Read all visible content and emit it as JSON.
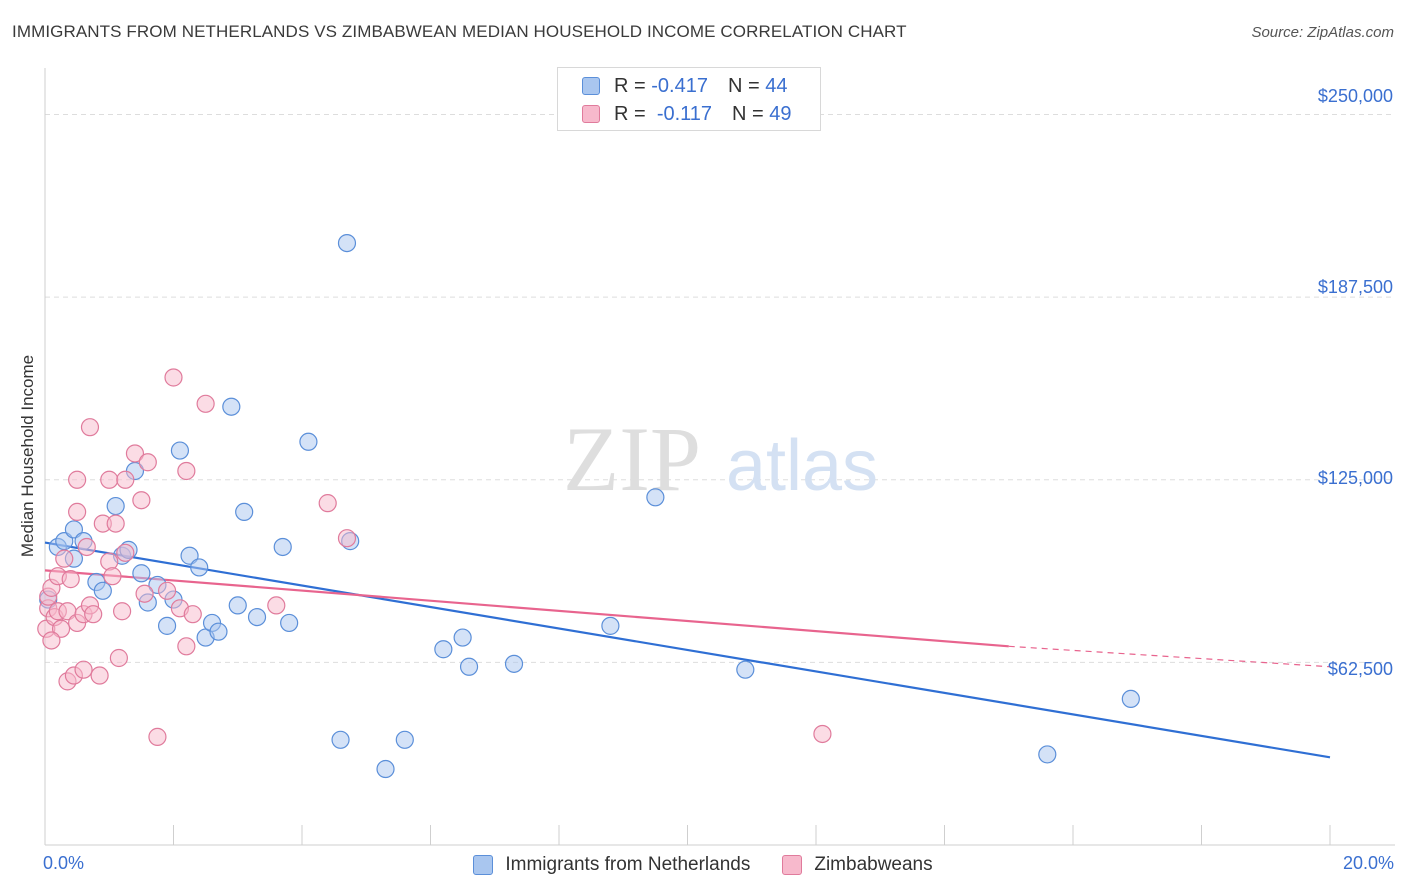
{
  "header": {
    "title": "IMMIGRANTS FROM NETHERLANDS VS ZIMBABWEAN MEDIAN HOUSEHOLD INCOME CORRELATION CHART",
    "source": "Source: ZipAtlas.com"
  },
  "legend": {
    "rows": [
      {
        "r_label": "R =",
        "r_value": "-0.417",
        "n_label": "N =",
        "n_value": "44"
      },
      {
        "r_label": "R =",
        "r_value": "-0.117",
        "n_label": "N =",
        "n_value": "49"
      }
    ]
  },
  "watermark": {
    "zip": "ZIP",
    "atlas": "atlas"
  },
  "colors": {
    "blue_fill": "#a9c6ef",
    "blue_stroke": "#5b8fd9",
    "blue_line": "#2f6fd4",
    "pink_fill": "#f7b9cc",
    "pink_stroke": "#e07b9c",
    "pink_line": "#e8648e",
    "axis_text": "#3a6fd0",
    "grid": "#dddddd"
  },
  "chart_data": {
    "type": "scatter",
    "title": "IMMIGRANTS FROM NETHERLANDS VS ZIMBABWEAN MEDIAN HOUSEHOLD INCOME CORRELATION CHART",
    "xlabel": "",
    "ylabel": "Median Household Income",
    "xlim": [
      0,
      20
    ],
    "ylim": [
      0,
      262500
    ],
    "x_tick_labels": [
      "0.0%",
      "20.0%"
    ],
    "y_ticks": [
      62500,
      125000,
      187500,
      250000
    ],
    "y_tick_labels": [
      "$62,500",
      "$125,000",
      "$187,500",
      "$250,000"
    ],
    "grid": true,
    "legend_position": "top-center",
    "series": [
      {
        "name": "Immigrants from Netherlands",
        "color": "#5b8fd9",
        "points": [
          [
            0.05,
            84000
          ],
          [
            0.2,
            102000
          ],
          [
            0.3,
            104000
          ],
          [
            0.45,
            108000
          ],
          [
            0.45,
            98000
          ],
          [
            0.6,
            104000
          ],
          [
            0.8,
            90000
          ],
          [
            0.9,
            87000
          ],
          [
            1.1,
            116000
          ],
          [
            1.2,
            99000
          ],
          [
            1.3,
            101000
          ],
          [
            1.4,
            128000
          ],
          [
            1.5,
            93000
          ],
          [
            1.6,
            83000
          ],
          [
            1.75,
            89000
          ],
          [
            1.9,
            75000
          ],
          [
            2.0,
            84000
          ],
          [
            2.1,
            135000
          ],
          [
            2.25,
            99000
          ],
          [
            2.4,
            95000
          ],
          [
            2.5,
            71000
          ],
          [
            2.6,
            76000
          ],
          [
            2.7,
            73000
          ],
          [
            2.9,
            150000
          ],
          [
            3.0,
            82000
          ],
          [
            3.1,
            114000
          ],
          [
            3.3,
            78000
          ],
          [
            3.7,
            102000
          ],
          [
            3.8,
            76000
          ],
          [
            4.1,
            138000
          ],
          [
            4.6,
            36000
          ],
          [
            4.7,
            206000
          ],
          [
            4.75,
            104000
          ],
          [
            5.3,
            26000
          ],
          [
            5.6,
            36000
          ],
          [
            6.2,
            67000
          ],
          [
            6.5,
            71000
          ],
          [
            6.6,
            61000
          ],
          [
            7.3,
            62000
          ],
          [
            8.8,
            75000
          ],
          [
            9.5,
            119000
          ],
          [
            10.9,
            60000
          ],
          [
            15.6,
            31000
          ],
          [
            16.9,
            50000
          ]
        ]
      },
      {
        "name": "Zimbabweans",
        "color": "#e07b9c",
        "points": [
          [
            0.02,
            74000
          ],
          [
            0.05,
            81000
          ],
          [
            0.05,
            85000
          ],
          [
            0.1,
            88000
          ],
          [
            0.15,
            78000
          ],
          [
            0.2,
            92000
          ],
          [
            0.2,
            80000
          ],
          [
            0.25,
            74000
          ],
          [
            0.3,
            98000
          ],
          [
            0.35,
            80000
          ],
          [
            0.35,
            56000
          ],
          [
            0.4,
            91000
          ],
          [
            0.45,
            58000
          ],
          [
            0.5,
            76000
          ],
          [
            0.5,
            114000
          ],
          [
            0.5,
            125000
          ],
          [
            0.6,
            79000
          ],
          [
            0.6,
            60000
          ],
          [
            0.65,
            102000
          ],
          [
            0.7,
            143000
          ],
          [
            0.7,
            82000
          ],
          [
            0.75,
            79000
          ],
          [
            0.85,
            58000
          ],
          [
            0.9,
            110000
          ],
          [
            1.0,
            125000
          ],
          [
            1.0,
            97000
          ],
          [
            1.05,
            92000
          ],
          [
            1.1,
            110000
          ],
          [
            1.15,
            64000
          ],
          [
            1.2,
            80000
          ],
          [
            1.25,
            100000
          ],
          [
            1.25,
            125000
          ],
          [
            1.4,
            134000
          ],
          [
            1.5,
            118000
          ],
          [
            1.55,
            86000
          ],
          [
            1.6,
            131000
          ],
          [
            1.75,
            37000
          ],
          [
            1.9,
            87000
          ],
          [
            2.0,
            160000
          ],
          [
            2.1,
            81000
          ],
          [
            2.2,
            128000
          ],
          [
            2.2,
            68000
          ],
          [
            2.3,
            79000
          ],
          [
            2.5,
            151000
          ],
          [
            3.6,
            82000
          ],
          [
            4.4,
            117000
          ],
          [
            4.7,
            105000
          ],
          [
            12.1,
            38000
          ],
          [
            0.1,
            70000
          ]
        ]
      }
    ],
    "trend_lines": [
      {
        "series": "Immigrants from Netherlands",
        "x": [
          0,
          20
        ],
        "y": [
          103500,
          30000
        ]
      },
      {
        "series": "Zimbabweans",
        "x": [
          0,
          15
        ],
        "y": [
          94000,
          68000
        ],
        "dashed_to": [
          20,
          61000
        ]
      }
    ]
  },
  "bottom_legend": {
    "items": [
      "Immigrants from Netherlands",
      "Zimbabweans"
    ]
  }
}
